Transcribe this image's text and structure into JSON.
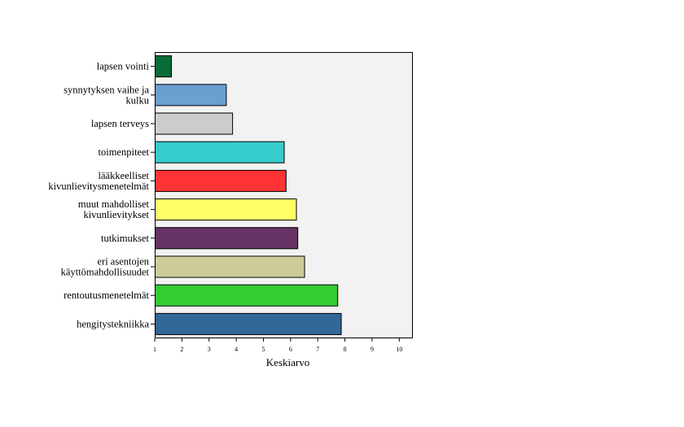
{
  "chart_data": {
    "type": "bar",
    "orientation": "horizontal",
    "title": "",
    "xlabel": "Keskiarvo",
    "ylabel": "",
    "xlim": [
      1,
      10.5
    ],
    "xticks": [
      1,
      2,
      3,
      4,
      5,
      6,
      7,
      8,
      9,
      10
    ],
    "grid": false,
    "legend": "none",
    "plot_background": "#f2f2f2",
    "categories": [
      [
        "lapsen vointi"
      ],
      [
        "synnytyksen vaihe ja",
        "kulku"
      ],
      [
        "lapsen terveys"
      ],
      [
        "toimenpiteet"
      ],
      [
        "lääkkeelliset",
        "kivunlievitysmenetelmät"
      ],
      [
        "muut mahdolliset",
        "kivunlievitykset"
      ],
      [
        "tutkimukset"
      ],
      [
        "eri asentojen",
        "käyttömahdollisuudet"
      ],
      [
        "rentoutusmenetelmät"
      ],
      [
        "hengitystekniikka"
      ]
    ],
    "values": [
      1.6,
      3.62,
      3.85,
      5.75,
      5.82,
      6.2,
      6.25,
      6.5,
      7.72,
      7.85
    ],
    "colors": [
      "#0a6b3a",
      "#6a9fd2",
      "#cccccc",
      "#36cccc",
      "#ff3333",
      "#ffff66",
      "#663366",
      "#cccc99",
      "#33cc33",
      "#336699"
    ]
  }
}
